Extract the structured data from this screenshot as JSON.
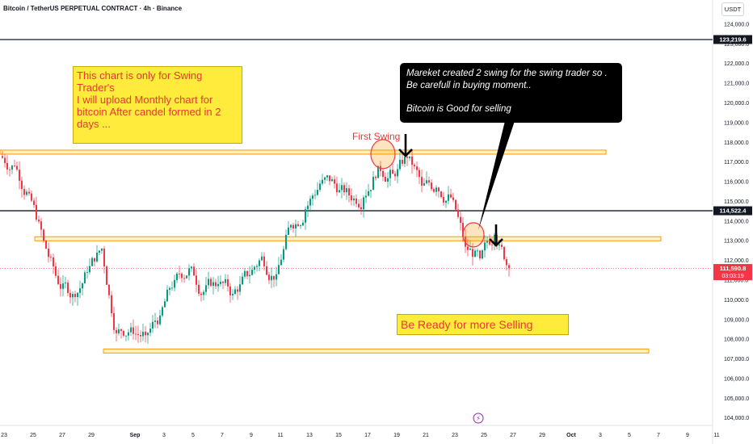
{
  "header": {
    "symbol_line": "Bitcoin / TetherUS PERPETUAL CONTRACT · 4h · Binance"
  },
  "axis": {
    "currency": "USDT"
  },
  "annotations": {
    "note_swing": "This chart is only for Swing Trader's\nI will upload Monthly chart for bitcoin After candel formed in 2 days ...",
    "callout_lines": [
      "Mareket created 2 swing for the swing trader so .",
      "Be carefull in buying moment..",
      "",
      "Bitcoin is Good for selling"
    ],
    "first_swing": "First Swing",
    "ready_selling": "Be Ready for more Selling"
  },
  "chart_data": {
    "type": "candlestick",
    "title": "Bitcoin / TetherUS PERPETUAL CONTRACT · 4h · Binance",
    "timeframe": "4h",
    "y_unit": "USDT",
    "ylim": [
      103700,
      124900
    ],
    "y_ticks": [
      104000,
      105000,
      106000,
      107000,
      108000,
      109000,
      110000,
      111000,
      112000,
      113000,
      114000,
      115000,
      116000,
      117000,
      118000,
      119000,
      120000,
      121000,
      122000,
      123000,
      124000
    ],
    "x_tick_labels": [
      "23",
      "25",
      "27",
      "29",
      "Sep",
      "3",
      "5",
      "7",
      "9",
      "11",
      "13",
      "15",
      "17",
      "19",
      "21",
      "23",
      "25",
      "27",
      "29",
      "Oct",
      "3",
      "5",
      "7",
      "9",
      "11"
    ],
    "price_markers": [
      {
        "label": "123,219.6",
        "value": 123219.6,
        "color": "#131722"
      },
      {
        "label": "114,522.4",
        "value": 114522.4,
        "color": "#131722"
      },
      {
        "label": "111,590.8",
        "sublabel": "03:03:19",
        "value": 111590.8,
        "color": "#f23645"
      }
    ],
    "levels": [
      {
        "value": 123219.6,
        "style": "black-line"
      },
      {
        "value": 114522.4,
        "style": "black-line"
      },
      {
        "value": 117500,
        "style": "orange-band"
      },
      {
        "value": 113100,
        "style": "orange-band"
      },
      {
        "value": 107400,
        "style": "orange-band"
      }
    ],
    "series_approx_close": [
      {
        "date": "Aug 22",
        "close": 116800
      },
      {
        "date": "Aug 23",
        "close": 115400
      },
      {
        "date": "Aug 24",
        "close": 113000
      },
      {
        "date": "Aug 25",
        "close": 110800
      },
      {
        "date": "Aug 26",
        "close": 110300
      },
      {
        "date": "Aug 27",
        "close": 111400
      },
      {
        "date": "Aug 28",
        "close": 112600
      },
      {
        "date": "Aug 29",
        "close": 108300
      },
      {
        "date": "Aug 30",
        "close": 108600
      },
      {
        "date": "Aug 31",
        "close": 108200
      },
      {
        "date": "Sep 1",
        "close": 109200
      },
      {
        "date": "Sep 2",
        "close": 111000
      },
      {
        "date": "Sep 3",
        "close": 111600
      },
      {
        "date": "Sep 4",
        "close": 110400
      },
      {
        "date": "Sep 5",
        "close": 110800
      },
      {
        "date": "Sep 6",
        "close": 110300
      },
      {
        "date": "Sep 7",
        "close": 111200
      },
      {
        "date": "Sep 8",
        "close": 112200
      },
      {
        "date": "Sep 9",
        "close": 111300
      },
      {
        "date": "Sep 10",
        "close": 113800
      },
      {
        "date": "Sep 11",
        "close": 114600
      },
      {
        "date": "Sep 12",
        "close": 115900
      },
      {
        "date": "Sep 13",
        "close": 115900
      },
      {
        "date": "Sep 14",
        "close": 115300
      },
      {
        "date": "Sep 15",
        "close": 115200
      },
      {
        "date": "Sep 16",
        "close": 116800
      },
      {
        "date": "Sep 17",
        "close": 116400
      },
      {
        "date": "Sep 18",
        "close": 117200
      },
      {
        "date": "Sep 19",
        "close": 115800
      },
      {
        "date": "Sep 20",
        "close": 115700
      },
      {
        "date": "Sep 21",
        "close": 115200
      },
      {
        "date": "Sep 22",
        "close": 112700
      },
      {
        "date": "Sep 23",
        "close": 112100
      },
      {
        "date": "Sep 24",
        "close": 113300
      },
      {
        "date": "Sep 25",
        "close": 111600
      }
    ]
  }
}
